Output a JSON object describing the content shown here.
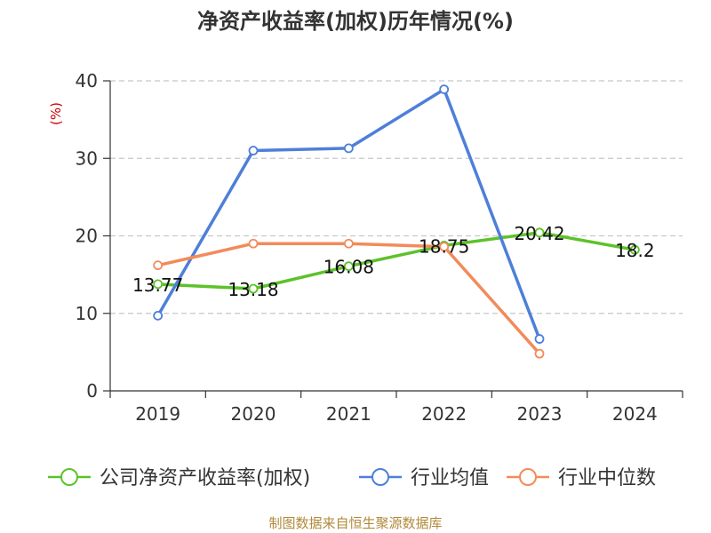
{
  "title": "净资产收益率(加权)历年情况(%)",
  "source": "制图数据来自恒生聚源数据库",
  "chart_data": {
    "type": "line",
    "ylabel": "(%)",
    "ylim": [
      0,
      40
    ],
    "yticks": [
      0,
      10,
      20,
      30,
      40
    ],
    "categories": [
      "2019",
      "2020",
      "2021",
      "2022",
      "2023",
      "2024"
    ],
    "grid": true,
    "legend_position": "bottom",
    "series": [
      {
        "name": "公司净资产收益率(加权)",
        "color": "#5cc22a",
        "values": [
          13.77,
          13.18,
          16.08,
          18.75,
          20.42,
          18.2
        ],
        "labels": [
          "13.77",
          "13.18",
          "16.08",
          "18.75",
          "20.42",
          "18.2"
        ]
      },
      {
        "name": "行业均值",
        "color": "#4e7fd9",
        "values": [
          9.7,
          31.0,
          31.3,
          38.9,
          6.7,
          null
        ]
      },
      {
        "name": "行业中位数",
        "color": "#f28b5a",
        "values": [
          16.2,
          19.0,
          19.0,
          18.6,
          4.8,
          null
        ]
      }
    ]
  }
}
